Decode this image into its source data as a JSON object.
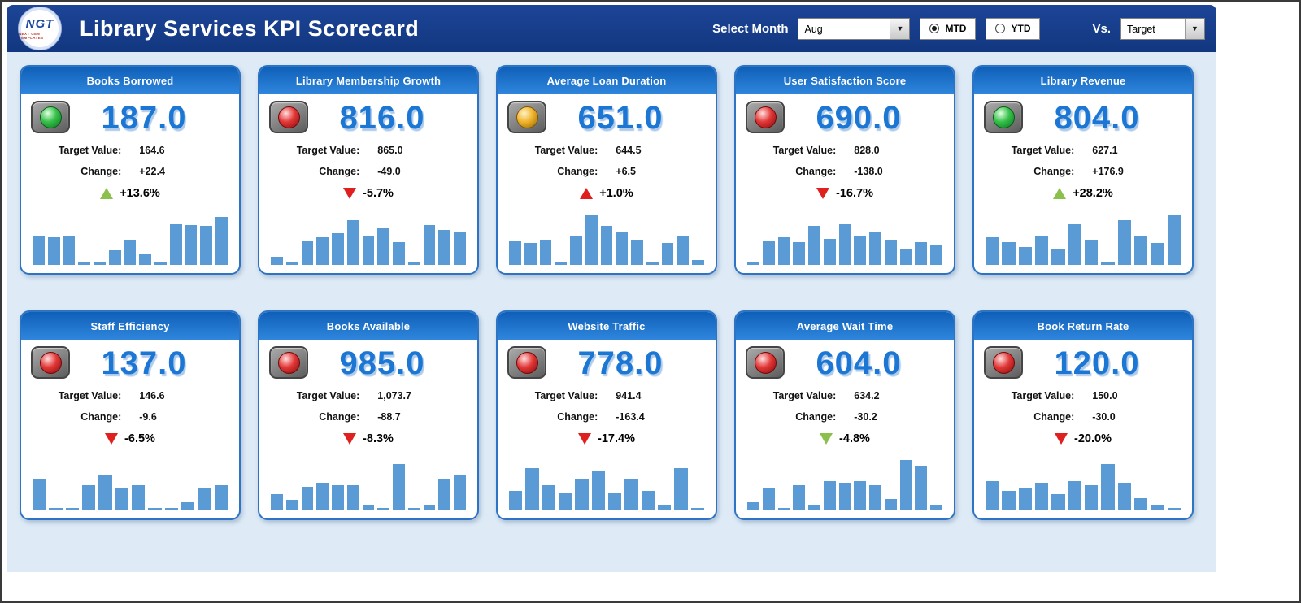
{
  "header": {
    "logo": {
      "text": "NGT",
      "subtext": "NEXT GEN TEMPLATES"
    },
    "title": "Library Services KPI Scorecard",
    "select_month_label": "Select Month",
    "month_value": "Aug",
    "dropdown_arrow": "▼",
    "period": {
      "options": [
        {
          "label": "MTD",
          "selected": true
        },
        {
          "label": "YTD",
          "selected": false
        }
      ]
    },
    "vs_label": "Vs.",
    "vs_value": "Target"
  },
  "labels": {
    "target": "Target Value:",
    "change": "Change:"
  },
  "colors": {
    "header_blue": "#123780",
    "card_header_blue": "#1565c0",
    "value_blue": "#1b76d4",
    "bar_blue": "#5b9bd5",
    "positive_green": "#8cc04d",
    "negative_red": "#e01f1f",
    "warning_yellow": "#f0b32a",
    "board_bg": "#deebf7"
  },
  "cards": [
    {
      "title": "Books Borrowed",
      "status": "green",
      "value": "187.0",
      "target": "164.6",
      "change": "+22.4",
      "pct": "+13.6%",
      "arrow": "up",
      "arrow_color": "green",
      "bars": [
        52,
        48,
        50,
        5,
        4,
        26,
        45,
        20,
        5,
        72,
        70,
        68,
        84
      ]
    },
    {
      "title": "Library Membership Growth",
      "status": "red",
      "value": "816.0",
      "target": "865.0",
      "change": "-49.0",
      "pct": "-5.7%",
      "arrow": "down",
      "arrow_color": "red",
      "bars": [
        15,
        5,
        42,
        48,
        56,
        78,
        50,
        66,
        40,
        5,
        70,
        62,
        58
      ]
    },
    {
      "title": "Average Loan Duration",
      "status": "yellow",
      "value": "651.0",
      "target": "644.5",
      "change": "+6.5",
      "pct": "+1.0%",
      "arrow": "up",
      "arrow_color": "red",
      "bars": [
        42,
        38,
        45,
        5,
        52,
        88,
        68,
        58,
        45,
        5,
        38,
        52,
        8
      ]
    },
    {
      "title": "User Satisfaction Score",
      "status": "red",
      "value": "690.0",
      "target": "828.0",
      "change": "-138.0",
      "pct": "-16.7%",
      "arrow": "down",
      "arrow_color": "red",
      "bars": [
        4,
        42,
        48,
        40,
        68,
        46,
        72,
        52,
        58,
        44,
        28,
        40,
        34
      ]
    },
    {
      "title": "Library Revenue",
      "status": "green",
      "value": "804.0",
      "target": "627.1",
      "change": "+176.9",
      "pct": "+28.2%",
      "arrow": "up",
      "arrow_color": "green",
      "bars": [
        48,
        40,
        32,
        52,
        28,
        72,
        44,
        5,
        78,
        52,
        38,
        88
      ]
    },
    {
      "title": "Staff Efficiency",
      "status": "red",
      "value": "137.0",
      "target": "146.6",
      "change": "-9.6",
      "pct": "-6.5%",
      "arrow": "down",
      "arrow_color": "red",
      "bars": [
        55,
        5,
        4,
        45,
        62,
        40,
        45,
        5,
        4,
        14,
        38,
        45
      ]
    },
    {
      "title": "Books Available",
      "status": "red",
      "value": "985.0",
      "target": "1,073.7",
      "change": "-88.7",
      "pct": "-8.3%",
      "arrow": "down",
      "arrow_color": "red",
      "bars": [
        28,
        18,
        42,
        48,
        44,
        44,
        10,
        4,
        82,
        5,
        8,
        56,
        62
      ]
    },
    {
      "title": "Website Traffic",
      "status": "red",
      "value": "778.0",
      "target": "941.4",
      "change": "-163.4",
      "pct": "-17.4%",
      "arrow": "down",
      "arrow_color": "red",
      "bars": [
        35,
        75,
        45,
        30,
        55,
        68,
        30,
        55,
        35,
        8,
        75,
        5
      ]
    },
    {
      "title": "Average Wait Time",
      "status": "red",
      "value": "604.0",
      "target": "634.2",
      "change": "-30.2",
      "pct": "-4.8%",
      "arrow": "down",
      "arrow_color": "green",
      "bars": [
        14,
        38,
        5,
        44,
        10,
        52,
        48,
        52,
        44,
        20,
        88,
        78,
        8
      ]
    },
    {
      "title": "Book Return Rate",
      "status": "red",
      "value": "120.0",
      "target": "150.0",
      "change": "-30.0",
      "pct": "-20.0%",
      "arrow": "down",
      "arrow_color": "red",
      "bars": [
        52,
        34,
        38,
        48,
        28,
        52,
        44,
        82,
        48,
        22,
        8,
        5
      ]
    }
  ]
}
